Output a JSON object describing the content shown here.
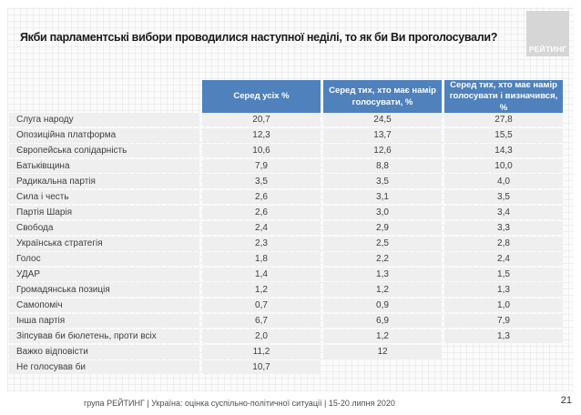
{
  "slide": {
    "title": "Якби парламентські вибори проводилися наступної неділі, то як би Ви проголосували?",
    "logo_text": "РЕЙТИНГ",
    "footer_caption": "група РЕЙТИНГ |  Україна: оцінка суспільно-політичної ситуації  | 15-20 липня  2020",
    "page_number": "21"
  },
  "colors": {
    "header_blue": "#4f81bd",
    "row_gray": "#efefef",
    "logo_gray": "#d6d6d6"
  },
  "chart_data": {
    "type": "table",
    "title": "Якби парламентські вибори проводилися наступної неділі, то як би Ви проголосували?",
    "columns": [
      "",
      "Серед усіх %",
      "Серед тих, хто має намір голосувати, %",
      "Серед тих, хто має намір голосувати і визначився, %"
    ],
    "rows": [
      {
        "label": "Слуга народу",
        "values": [
          "20,7",
          "24,5",
          "27,8"
        ]
      },
      {
        "label": "Опозиційна платформа",
        "values": [
          "12,3",
          "13,7",
          "15,5"
        ]
      },
      {
        "label": "Європейська солідарність",
        "values": [
          "10,6",
          "12,6",
          "14,3"
        ]
      },
      {
        "label": "Батьківщина",
        "values": [
          "7,9",
          "8,8",
          "10,0"
        ]
      },
      {
        "label": "Радикальна партія",
        "values": [
          "3,5",
          "3,5",
          "4,0"
        ]
      },
      {
        "label": "Сила і честь",
        "values": [
          "2,6",
          "3,1",
          "3,5"
        ]
      },
      {
        "label": "Партія Шарія",
        "values": [
          "2,6",
          "3,0",
          "3,4"
        ]
      },
      {
        "label": "Свобода",
        "values": [
          "2,4",
          "2,9",
          "3,3"
        ]
      },
      {
        "label": "Українська стратегія",
        "values": [
          "2,3",
          "2,5",
          "2,8"
        ]
      },
      {
        "label": "Голос",
        "values": [
          "1,8",
          "2,2",
          "2,4"
        ]
      },
      {
        "label": "УДАР",
        "values": [
          "1,4",
          "1,3",
          "1,5"
        ]
      },
      {
        "label": "Громадянська позиція",
        "values": [
          "1,2",
          "1,2",
          "1,3"
        ]
      },
      {
        "label": "Самопоміч",
        "values": [
          "0,7",
          "0,9",
          "1,0"
        ]
      },
      {
        "label": "Інша партія",
        "values": [
          "6,7",
          "6,9",
          "7,9"
        ]
      },
      {
        "label": "Зіпсував би бюлетень, проти всіх",
        "values": [
          "2,0",
          "1,2",
          "1,3"
        ]
      },
      {
        "label": "Важко відповісти",
        "values": [
          "11,2",
          "12",
          null
        ]
      },
      {
        "label": "Не голосував би",
        "values": [
          "10,7",
          null,
          null
        ]
      }
    ]
  }
}
